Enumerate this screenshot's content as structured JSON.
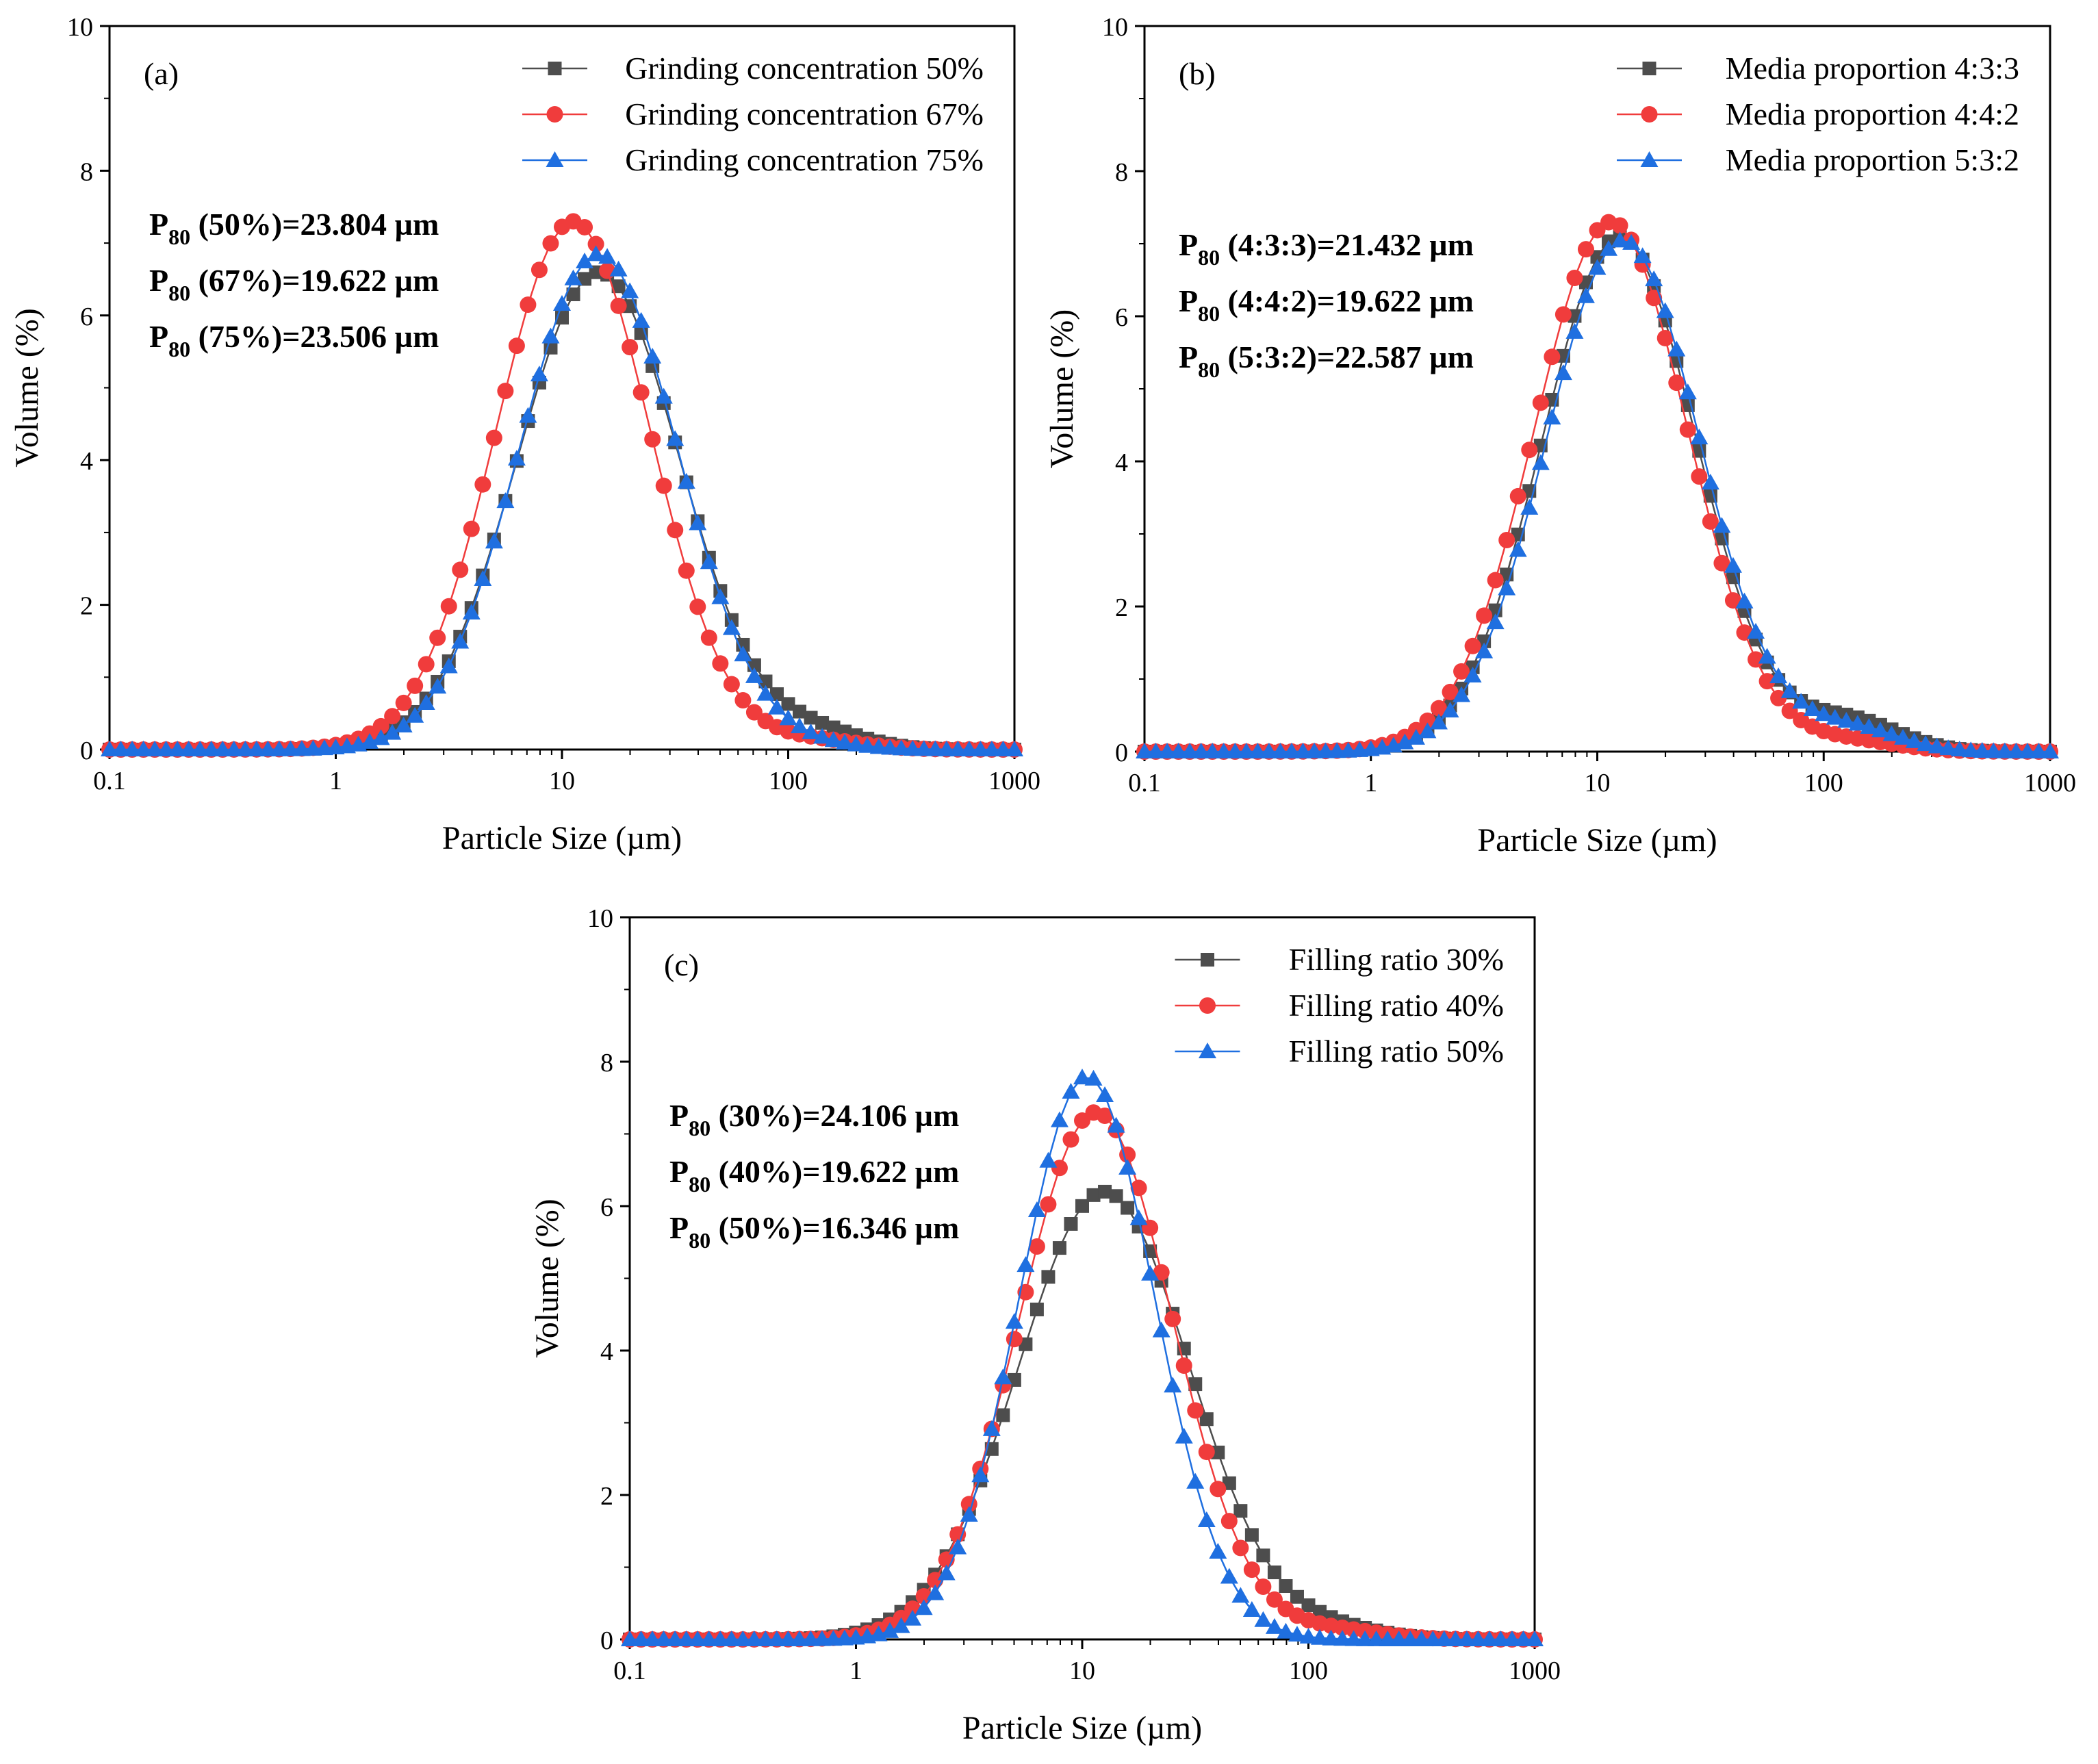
{
  "chart_data": [
    {
      "type": "line",
      "panel_label": "(a)",
      "xlabel": "Particle Size (µm)",
      "ylabel": "Volume (%)",
      "xscale": "log",
      "xlim": [
        0.1,
        1000
      ],
      "ylim": [
        0,
        10
      ],
      "x_ticks": [
        "0.1",
        "1",
        "10",
        "100",
        "1000"
      ],
      "y_ticks": [
        "0",
        "2",
        "4",
        "6",
        "8",
        "10"
      ],
      "legend_position": "top-right",
      "annotations": [
        {
          "prefix": "P",
          "sub": "80",
          "rest": " (50%)=23.804 µm"
        },
        {
          "prefix": "P",
          "sub": "80",
          "rest": " (67%)=19.622 µm"
        },
        {
          "prefix": "P",
          "sub": "80",
          "rest": " (75%)=23.506 µm"
        }
      ],
      "series": [
        {
          "name": "Grinding concentration 50%",
          "color": "#4d4d4d",
          "marker": "square",
          "center": 14.5,
          "peak": 6.6,
          "sigma": 0.36,
          "tail": 0.22
        },
        {
          "name": "Grinding concentration 67%",
          "color": "#f03c3c",
          "marker": "circle",
          "center": 11.2,
          "peak": 7.3,
          "sigma": 0.34,
          "tail": 0.12
        },
        {
          "name": "Grinding concentration 75%",
          "color": "#1f6fe0",
          "marker": "triangle",
          "center": 14.5,
          "peak": 6.85,
          "sigma": 0.35,
          "tail": 0.05
        }
      ]
    },
    {
      "type": "line",
      "panel_label": "(b)",
      "xlabel": "Particle Size (µm)",
      "ylabel": "Volume (%)",
      "xscale": "log",
      "xlim": [
        0.1,
        1000
      ],
      "ylim": [
        0,
        10
      ],
      "x_ticks": [
        "0.1",
        "1",
        "10",
        "100",
        "1000"
      ],
      "y_ticks": [
        "0",
        "2",
        "4",
        "6",
        "8",
        "10"
      ],
      "legend_position": "top-right",
      "annotations": [
        {
          "prefix": "P",
          "sub": "80",
          "rest": " (4:3:3)=21.432 µm"
        },
        {
          "prefix": "P",
          "sub": "80",
          "rest": " (4:4:2)=19.622 µm"
        },
        {
          "prefix": "P",
          "sub": "80",
          "rest": " (5:3:2)=22.587 µm"
        }
      ],
      "series": [
        {
          "name": "Media proportion 4:3:3",
          "color": "#4d4d4d",
          "marker": "square",
          "center": 12.5,
          "peak": 7.1,
          "sigma": 0.34,
          "tail": 0.42
        },
        {
          "name": "Media proportion 4:4:2",
          "color": "#f03c3c",
          "marker": "circle",
          "center": 11.5,
          "peak": 7.3,
          "sigma": 0.34,
          "tail": 0.14
        },
        {
          "name": "Media proportion 5:3:2",
          "color": "#1f6fe0",
          "marker": "triangle",
          "center": 13.0,
          "peak": 7.05,
          "sigma": 0.34,
          "tail": 0.32
        }
      ]
    },
    {
      "type": "line",
      "panel_label": "(c)",
      "xlabel": "Particle Size (µm)",
      "ylabel": "Volume (%)",
      "xscale": "log",
      "xlim": [
        0.1,
        1000
      ],
      "ylim": [
        0,
        10
      ],
      "x_ticks": [
        "0.1",
        "1",
        "10",
        "100",
        "1000"
      ],
      "y_ticks": [
        "0",
        "2",
        "4",
        "6",
        "8",
        "10"
      ],
      "legend_position": "top-right",
      "annotations": [
        {
          "prefix": "P",
          "sub": "80",
          "rest": " (30%)=24.106 µm"
        },
        {
          "prefix": "P",
          "sub": "80",
          "rest": " (40%)=19.622 µm"
        },
        {
          "prefix": "P",
          "sub": "80",
          "rest": " (50%)=16.346 µm"
        }
      ],
      "series": [
        {
          "name": "Filling ratio 30%",
          "color": "#4d4d4d",
          "marker": "square",
          "center": 12.5,
          "peak": 6.2,
          "sigma": 0.38,
          "tail": 0.12
        },
        {
          "name": "Filling ratio 40%",
          "color": "#f03c3c",
          "marker": "circle",
          "center": 11.5,
          "peak": 7.3,
          "sigma": 0.34,
          "tail": 0.12
        },
        {
          "name": "Filling ratio 50%",
          "color": "#1f6fe0",
          "marker": "triangle",
          "center": 10.5,
          "peak": 7.8,
          "sigma": 0.3,
          "tail": 0.0
        }
      ]
    }
  ]
}
